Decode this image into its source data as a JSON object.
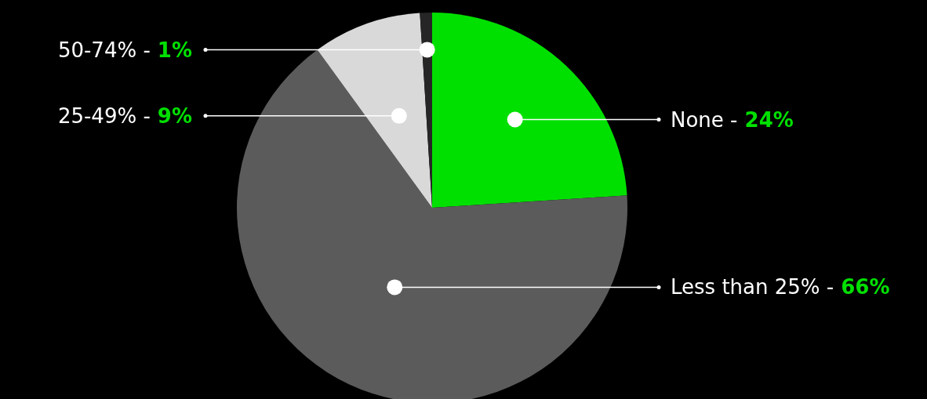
{
  "chart_data": {
    "type": "pie",
    "categories": [
      "None -",
      "Less than 25% -",
      "25-49% -",
      "50-74% -"
    ],
    "values": [
      24,
      66,
      9,
      1
    ],
    "value_labels": [
      "24%",
      "66%",
      "9%",
      "1%"
    ],
    "colors": [
      "#00e000",
      "#5b5b5b",
      "#d9d9d9",
      "#262626"
    ]
  }
}
